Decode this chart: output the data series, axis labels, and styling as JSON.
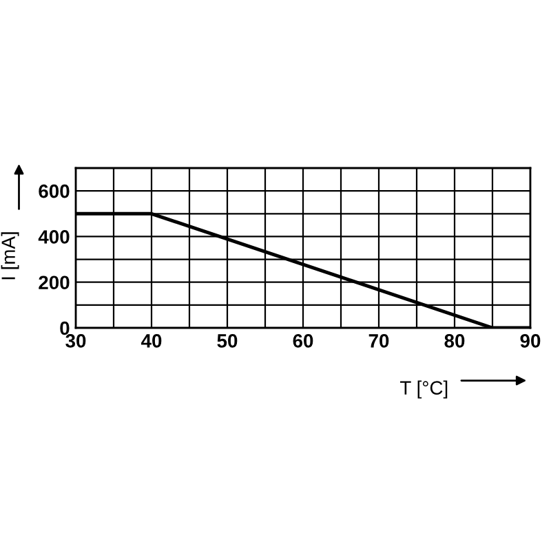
{
  "chart_data": {
    "type": "line",
    "xlabel": "T [°C]",
    "ylabel": "I [mA]",
    "x": [
      30,
      40,
      85,
      90
    ],
    "series": [
      {
        "color": "#000000",
        "values": [
          500,
          500,
          0,
          0
        ]
      }
    ],
    "xlim": [
      30,
      90
    ],
    "ylim": [
      0,
      700
    ],
    "xticks": [
      30,
      {
        "value": 35,
        "label": null
      },
      40,
      {
        "value": 45,
        "label": null
      },
      50,
      {
        "value": 55,
        "label": null
      },
      60,
      {
        "value": 65,
        "label": null
      },
      70,
      {
        "value": 75,
        "label": null
      },
      80,
      {
        "value": 85,
        "label": null
      },
      90
    ],
    "yticks": [
      0,
      {
        "value": 100,
        "label": null
      },
      200,
      {
        "value": 300,
        "label": null
      },
      400,
      {
        "value": 500,
        "label": null
      },
      600,
      {
        "value": 700,
        "label": null
      }
    ],
    "grid": true,
    "legend": false,
    "marker": "none",
    "line_style": "solid"
  }
}
